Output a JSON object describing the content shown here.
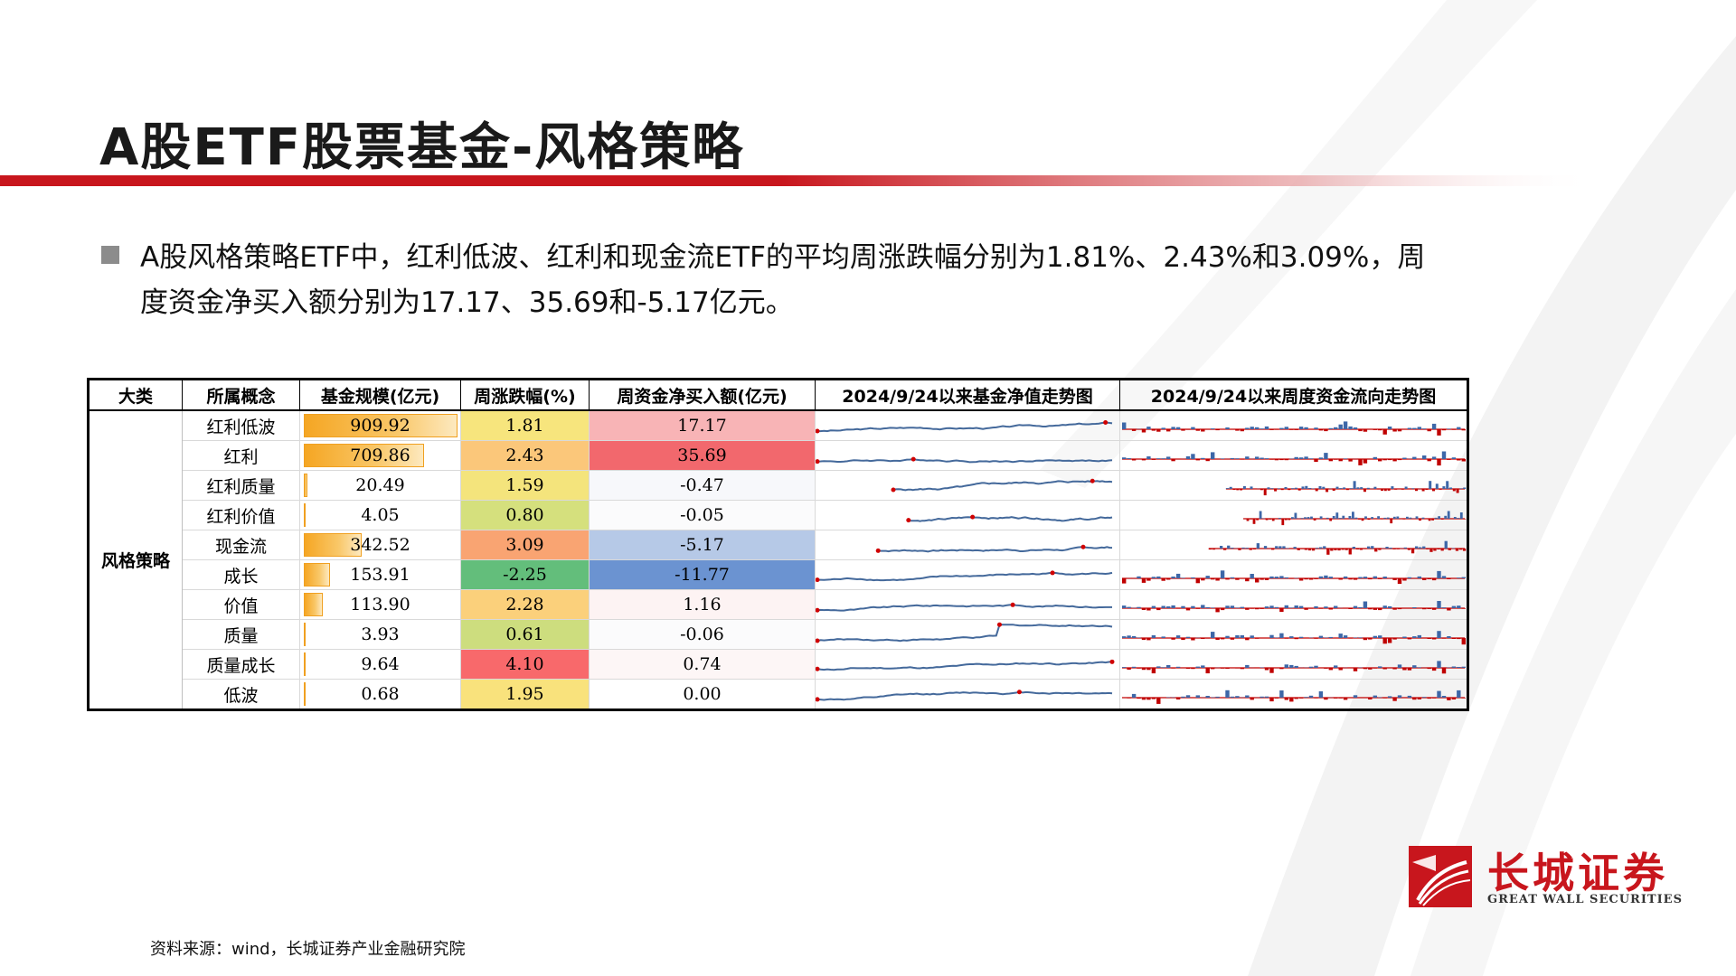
{
  "title": "A股ETF股票基金-风格策略",
  "bullet": "A股风格策略ETF中，红利低波、红利和现金流ETF的平均周涨跌幅分别为1.81%、2.43%和3.09%，周度资金净买入额分别为17.17、35.69和-5.17亿元。",
  "table": {
    "headers": [
      "大类",
      "所属概念",
      "基金规模(亿元)",
      "周涨跌幅(%)",
      "周资金净买入额(亿元)",
      "2024/9/24以来基金净值走势图",
      "2024/9/24以来周度资金流向走势图"
    ],
    "category": "风格策略",
    "rows": [
      {
        "concept": "红利低波",
        "size": "909.92",
        "size_frac": 1.0,
        "change": "1.81",
        "change_color": "#f7e57d",
        "flow": "17.17",
        "flow_color": "#f8b4b6"
      },
      {
        "concept": "红利",
        "size": "709.86",
        "size_frac": 0.78,
        "change": "2.43",
        "change_color": "#fbc77a",
        "flow": "35.69",
        "flow_color": "#f2686d"
      },
      {
        "concept": "红利质量",
        "size": "20.49",
        "size_frac": 0.022,
        "change": "1.59",
        "change_color": "#f4e47c",
        "flow": "-0.47",
        "flow_color": "#f7f8fb"
      },
      {
        "concept": "红利价值",
        "size": "4.05",
        "size_frac": 0.005,
        "change": "0.80",
        "change_color": "#d5e07d",
        "flow": "-0.05",
        "flow_color": "#fbfbfc"
      },
      {
        "concept": "现金流",
        "size": "342.52",
        "size_frac": 0.376,
        "change": "3.09",
        "change_color": "#f9a472",
        "flow": "-5.17",
        "flow_color": "#b6c9e7"
      },
      {
        "concept": "成长",
        "size": "153.91",
        "size_frac": 0.169,
        "change": "-2.25",
        "change_color": "#63be7b",
        "flow": "-11.77",
        "flow_color": "#6b93d1"
      },
      {
        "concept": "价值",
        "size": "113.90",
        "size_frac": 0.125,
        "change": "2.28",
        "change_color": "#fbd07b",
        "flow": "1.16",
        "flow_color": "#fdf3f3"
      },
      {
        "concept": "质量",
        "size": "3.93",
        "size_frac": 0.004,
        "change": "0.61",
        "change_color": "#cddd7e",
        "flow": "-0.06",
        "flow_color": "#fbfbfc"
      },
      {
        "concept": "质量成长",
        "size": "9.64",
        "size_frac": 0.011,
        "change": "4.10",
        "change_color": "#f8696b",
        "flow": "0.74",
        "flow_color": "#fdf6f6"
      },
      {
        "concept": "低波",
        "size": "0.68",
        "size_frac": 0.001,
        "change": "1.95",
        "change_color": "#f9e27c",
        "flow": "0.00",
        "flow_color": "#ffffff"
      }
    ]
  },
  "colors": {
    "accent_red": "#c8161d",
    "line_blue": "#44699b",
    "bar_blue": "#3d67a8",
    "bar_red": "#c00000"
  },
  "source": "资料来源：wind，长城证券产业金融研究院",
  "logo": {
    "cn": "长城证券",
    "en": "GREAT WALL SECURITIES",
    "icon": "great-wall-logo-icon"
  }
}
